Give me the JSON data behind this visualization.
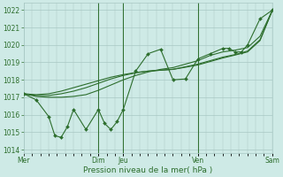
{
  "background_color": "#ceeae6",
  "grid_color": "#a8c8c4",
  "line_color": "#2d6e2d",
  "text_color": "#2d6e2d",
  "xlabel": "Pression niveau de la mer( hPa )",
  "ylim": [
    1013.8,
    1022.4
  ],
  "yticks": [
    1014,
    1015,
    1016,
    1017,
    1018,
    1019,
    1020,
    1021,
    1022
  ],
  "day_labels": [
    "Mer",
    "Dim",
    "Jeu",
    "Ven",
    "Sam"
  ],
  "day_positions": [
    0,
    3,
    4,
    7,
    10
  ],
  "vline_positions": [
    3,
    4,
    7,
    10
  ],
  "smooth_series": [
    {
      "x": [
        0,
        0.5,
        1,
        1.5,
        2,
        2.5,
        3,
        3.5,
        4,
        4.5,
        5,
        5.5,
        6,
        6.5,
        7,
        7.5,
        8,
        8.5,
        9,
        9.5,
        10
      ],
      "y": [
        1017.2,
        1017.05,
        1017.0,
        1017.0,
        1017.05,
        1017.15,
        1017.4,
        1017.7,
        1018.0,
        1018.25,
        1018.45,
        1018.6,
        1018.7,
        1018.9,
        1019.1,
        1019.4,
        1019.6,
        1019.7,
        1019.85,
        1020.5,
        1022.0
      ]
    },
    {
      "x": [
        0,
        0.5,
        1,
        1.5,
        2,
        2.5,
        3,
        3.5,
        4,
        4.5,
        5,
        5.5,
        6,
        6.5,
        7,
        7.5,
        8,
        8.5,
        9,
        9.5,
        10
      ],
      "y": [
        1017.2,
        1017.1,
        1017.1,
        1017.2,
        1017.35,
        1017.55,
        1017.8,
        1018.05,
        1018.25,
        1018.4,
        1018.5,
        1018.55,
        1018.6,
        1018.75,
        1018.9,
        1019.1,
        1019.3,
        1019.45,
        1019.65,
        1020.3,
        1022.0
      ]
    },
    {
      "x": [
        0,
        0.5,
        1,
        1.5,
        2,
        2.5,
        3,
        3.5,
        4,
        4.5,
        5,
        5.5,
        6,
        6.5,
        7,
        7.5,
        8,
        8.5,
        9,
        9.5,
        10
      ],
      "y": [
        1017.2,
        1017.15,
        1017.2,
        1017.35,
        1017.55,
        1017.75,
        1017.95,
        1018.15,
        1018.3,
        1018.42,
        1018.5,
        1018.55,
        1018.6,
        1018.72,
        1018.85,
        1019.05,
        1019.25,
        1019.42,
        1019.6,
        1020.25,
        1022.0
      ]
    }
  ],
  "marker_series": {
    "x": [
      0,
      0.5,
      1.0,
      1.25,
      1.5,
      1.75,
      2.0,
      2.5,
      3.0,
      3.25,
      3.5,
      3.75,
      4.0,
      4.5,
      5.0,
      5.5,
      6.0,
      6.5,
      7.0,
      7.5,
      8.0,
      8.25,
      8.5,
      8.75,
      9.0,
      9.5,
      10.0
    ],
    "y": [
      1017.2,
      1016.85,
      1015.9,
      1014.8,
      1014.7,
      1015.3,
      1016.3,
      1015.15,
      1016.3,
      1015.5,
      1015.15,
      1015.6,
      1016.3,
      1018.5,
      1019.5,
      1019.75,
      1018.0,
      1018.05,
      1019.2,
      1019.5,
      1019.8,
      1019.8,
      1019.6,
      1019.6,
      1020.0,
      1021.5,
      1022.0
    ]
  }
}
